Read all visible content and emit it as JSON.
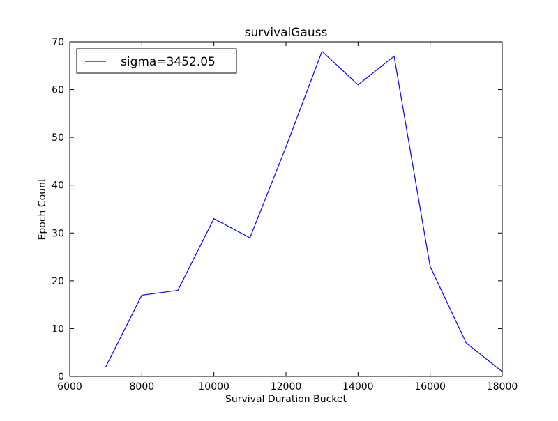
{
  "chart_data": {
    "type": "line",
    "title": "survivalGauss",
    "xlabel": "Survival Duration Bucket",
    "ylabel": "Epoch Count",
    "xlim": [
      6000,
      18000
    ],
    "ylim": [
      0,
      70
    ],
    "xticks": [
      6000,
      8000,
      10000,
      12000,
      14000,
      16000,
      18000
    ],
    "yticks": [
      0,
      10,
      20,
      30,
      40,
      50,
      60,
      70
    ],
    "grid": false,
    "legend_position": "top-left",
    "series": [
      {
        "name": "sigma=3452.05",
        "color": "#0000ff",
        "x": [
          7000,
          8000,
          9000,
          10000,
          11000,
          12000,
          13000,
          14000,
          15000,
          16000,
          17000,
          18000
        ],
        "y": [
          2,
          17,
          18,
          33,
          29,
          48,
          68,
          61,
          67,
          23,
          7,
          1
        ]
      }
    ]
  }
}
